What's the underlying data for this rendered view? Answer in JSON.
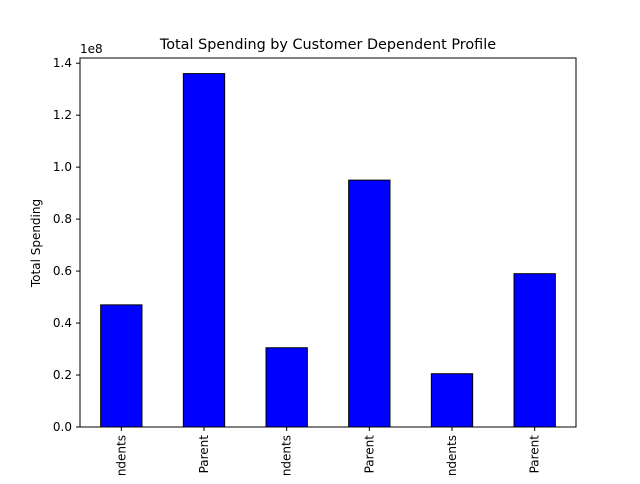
{
  "chart_data": {
    "type": "bar",
    "title": "Total Spending by Customer Dependent Profile",
    "xlabel": "",
    "ylabel": "Total Spending",
    "y_offset_label": "1e8",
    "y_multiplier": 100000000,
    "categories": [
      "Single No Dependents",
      "Single Parent",
      "Married No Dependents",
      "Married Parent",
      "Divorced No Dependents",
      "Divorced Parent"
    ],
    "visible_tick_text": [
      "ndents",
      "Parent",
      "ndents",
      "Parent",
      "ndents",
      "Parent"
    ],
    "values": [
      47000000,
      136000000,
      30500000,
      95000000,
      20500000,
      59000000
    ],
    "ylim": [
      0,
      142000000
    ],
    "yticks": [
      0,
      20000000,
      40000000,
      60000000,
      80000000,
      100000000,
      120000000,
      140000000
    ],
    "ytick_labels": [
      "0.0",
      "0.2",
      "0.4",
      "0.6",
      "0.8",
      "1.0",
      "1.2",
      "1.4"
    ],
    "bar_color": "#0000ff",
    "edge_color": "#000000",
    "grid": false,
    "legend": "none"
  }
}
